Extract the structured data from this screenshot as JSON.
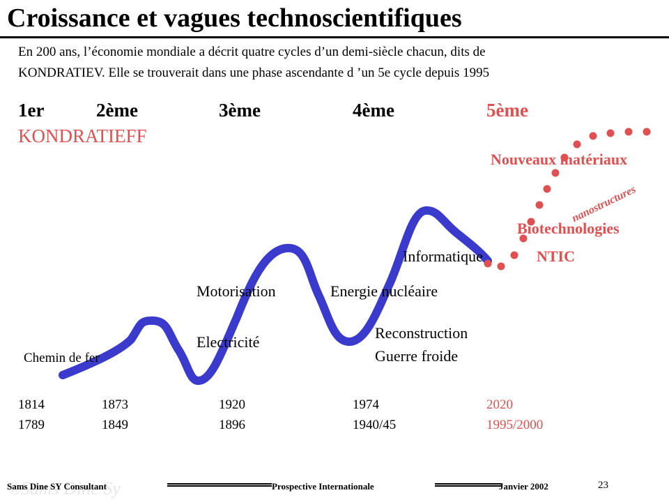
{
  "title": "Croissance et vagues technoscientifiques",
  "intro": {
    "line1": "En 200 ans, l’économie mondiale a décrit quatre cycles d’un demi-siècle chacun, dits de",
    "line2": "KONDRATIEV.  Elle se trouverait dans une phase ascendante d ’un 5e cycle depuis 1995"
  },
  "cycles": {
    "first": "1er",
    "second": "2ème",
    "third": "3ème",
    "fourth": "4ème",
    "fifth": "5ème",
    "name": "KONDRATIEFF"
  },
  "labels": {
    "railway": "Chemin de fer",
    "motorisation": "Motorisation",
    "electricite": "Electricité",
    "nuclear": "Energie nucléaire",
    "reconstruction": "Reconstruction",
    "cold_war": "Guerre froide",
    "informatique": "Informatique"
  },
  "new_techs": {
    "materials": "Nouveaux  matériaux",
    "nano": "nanostructures",
    "biotech": "Biotechnologies",
    "ntic": "NTIC"
  },
  "years": {
    "top": [
      "1814",
      "1873",
      "1920",
      "1974",
      "2020"
    ],
    "bottom": [
      "1789",
      "1849",
      "1896",
      "1940/45",
      "1995/2000"
    ]
  },
  "footer": {
    "left": "Sams Dine SY Consultant",
    "center": "Prospective Internationale",
    "date": "Janvier 2002",
    "page": "23",
    "watermark": "©Sams Dine Sy"
  },
  "colors": {
    "curve": "#3a3acc",
    "accent": "#e05050"
  }
}
